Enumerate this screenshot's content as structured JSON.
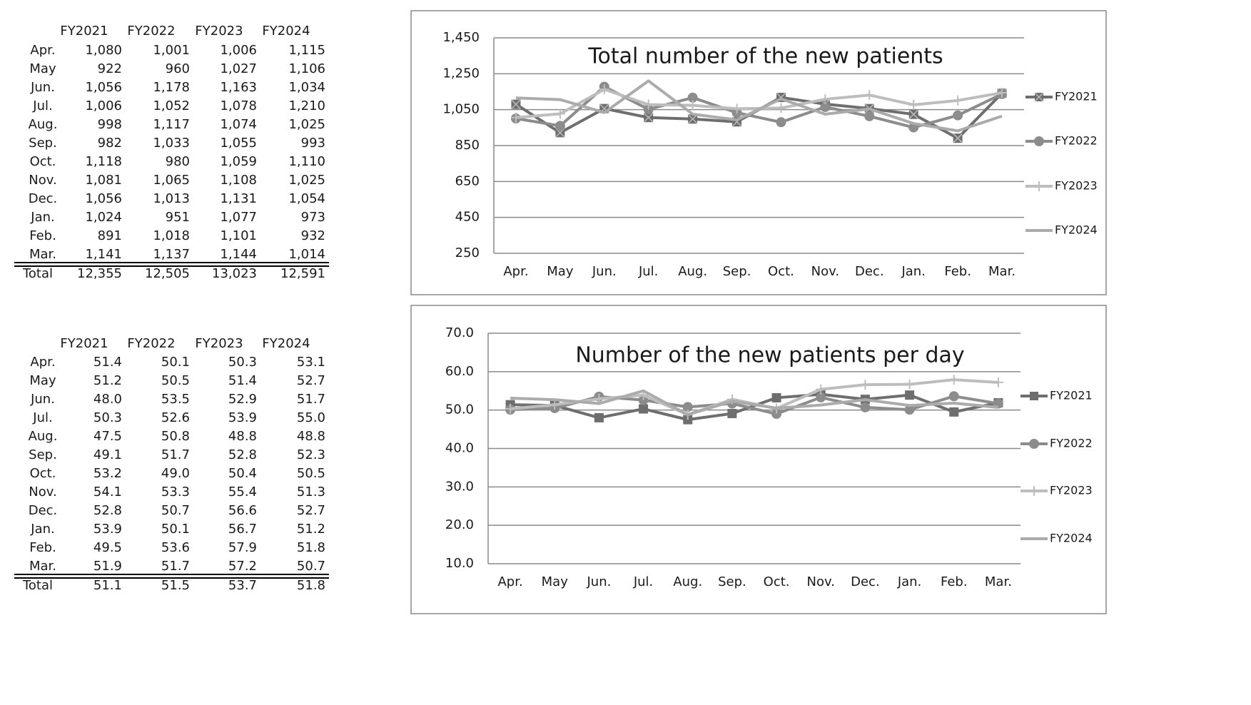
{
  "tables": [
    {
      "columns": [
        "FY2021",
        "FY2022",
        "FY2023",
        "FY2024"
      ],
      "rows": [
        {
          "label": "Apr.",
          "cells": [
            "1,080",
            "1,001",
            "1,006",
            "1,115"
          ]
        },
        {
          "label": "May",
          "cells": [
            "922",
            "960",
            "1,027",
            "1,106"
          ]
        },
        {
          "label": "Jun.",
          "cells": [
            "1,056",
            "1,178",
            "1,163",
            "1,034"
          ]
        },
        {
          "label": "Jul.",
          "cells": [
            "1,006",
            "1,052",
            "1,078",
            "1,210"
          ]
        },
        {
          "label": "Aug.",
          "cells": [
            "998",
            "1,117",
            "1,074",
            "1,025"
          ]
        },
        {
          "label": "Sep.",
          "cells": [
            "982",
            "1,033",
            "1,055",
            "993"
          ]
        },
        {
          "label": "Oct.",
          "cells": [
            "1,118",
            "980",
            "1,059",
            "1,110"
          ]
        },
        {
          "label": "Nov.",
          "cells": [
            "1,081",
            "1,065",
            "1,108",
            "1,025"
          ]
        },
        {
          "label": "Dec.",
          "cells": [
            "1,056",
            "1,013",
            "1,131",
            "1,054"
          ]
        },
        {
          "label": "Jan.",
          "cells": [
            "1,024",
            "951",
            "1,077",
            "973"
          ]
        },
        {
          "label": "Feb.",
          "cells": [
            "891",
            "1,018",
            "1,101",
            "932"
          ]
        },
        {
          "label": "Mar.",
          "cells": [
            "1,141",
            "1,137",
            "1,144",
            "1,014"
          ]
        }
      ],
      "total": {
        "label": "Total",
        "cells": [
          "12,355",
          "12,505",
          "13,023",
          "12,591"
        ]
      }
    },
    {
      "columns": [
        "FY2021",
        "FY2022",
        "FY2023",
        "FY2024"
      ],
      "rows": [
        {
          "label": "Apr.",
          "cells": [
            "51.4",
            "50.1",
            "50.3",
            "53.1"
          ]
        },
        {
          "label": "May",
          "cells": [
            "51.2",
            "50.5",
            "51.4",
            "52.7"
          ]
        },
        {
          "label": "Jun.",
          "cells": [
            "48.0",
            "53.5",
            "52.9",
            "51.7"
          ]
        },
        {
          "label": "Jul.",
          "cells": [
            "50.3",
            "52.6",
            "53.9",
            "55.0"
          ]
        },
        {
          "label": "Aug.",
          "cells": [
            "47.5",
            "50.8",
            "48.8",
            "48.8"
          ]
        },
        {
          "label": "Sep.",
          "cells": [
            "49.1",
            "51.7",
            "52.8",
            "52.3"
          ]
        },
        {
          "label": "Oct.",
          "cells": [
            "53.2",
            "49.0",
            "50.4",
            "50.5"
          ]
        },
        {
          "label": "Nov.",
          "cells": [
            "54.1",
            "53.3",
            "55.4",
            "51.3"
          ]
        },
        {
          "label": "Dec.",
          "cells": [
            "52.8",
            "50.7",
            "56.6",
            "52.7"
          ]
        },
        {
          "label": "Jan.",
          "cells": [
            "53.9",
            "50.1",
            "56.7",
            "51.2"
          ]
        },
        {
          "label": "Feb.",
          "cells": [
            "49.5",
            "53.6",
            "57.9",
            "51.8"
          ]
        },
        {
          "label": "Mar.",
          "cells": [
            "51.9",
            "51.7",
            "57.2",
            "50.7"
          ]
        }
      ],
      "total": {
        "label": "Total",
        "cells": [
          "51.1",
          "51.5",
          "53.7",
          "51.8"
        ]
      }
    }
  ],
  "chart_data": [
    {
      "type": "line",
      "title": "Total number of the new patients",
      "categories": [
        "Apr.",
        "May",
        "Jun.",
        "Jul.",
        "Aug.",
        "Sep.",
        "Oct.",
        "Nov.",
        "Dec.",
        "Jan.",
        "Feb.",
        "Mar."
      ],
      "ylim": [
        250,
        1450
      ],
      "yticks": [
        250,
        450,
        650,
        850,
        {
          "value": 1050,
          "label": "1,050"
        },
        {
          "value": 1250,
          "label": "1,250"
        },
        {
          "value": 1450,
          "label": "1,450"
        }
      ],
      "grid": true,
      "legend": "right",
      "series": [
        {
          "name": "FY2021",
          "color": "#6e6e6e",
          "marker": "square-x",
          "values": [
            1080,
            922,
            1056,
            1006,
            998,
            982,
            1118,
            1081,
            1056,
            1024,
            891,
            1141
          ]
        },
        {
          "name": "FY2022",
          "color": "#8c8c8c",
          "marker": "circle",
          "values": [
            1001,
            960,
            1178,
            1052,
            1117,
            1033,
            980,
            1065,
            1013,
            951,
            1018,
            1137
          ]
        },
        {
          "name": "FY2023",
          "color": "#bdbdbd",
          "marker": "plus",
          "values": [
            1006,
            1027,
            1163,
            1078,
            1074,
            1055,
            1059,
            1108,
            1131,
            1077,
            1101,
            1144
          ]
        },
        {
          "name": "FY2024",
          "color": "#ababab",
          "marker": "none",
          "values": [
            1115,
            1106,
            1034,
            1210,
            1025,
            993,
            1110,
            1025,
            1054,
            973,
            932,
            1014
          ]
        }
      ]
    },
    {
      "type": "line",
      "title": "Number of the new patients per day",
      "categories": [
        "Apr.",
        "May",
        "Jun.",
        "Jul.",
        "Aug.",
        "Sep.",
        "Oct.",
        "Nov.",
        "Dec.",
        "Jan.",
        "Feb.",
        "Mar."
      ],
      "ylim": [
        10,
        70
      ],
      "yticks": [
        {
          "value": 10,
          "label": "10.0"
        },
        {
          "value": 20,
          "label": "20.0"
        },
        {
          "value": 30,
          "label": "30.0"
        },
        {
          "value": 40,
          "label": "40.0"
        },
        {
          "value": 50,
          "label": "50.0"
        },
        {
          "value": 60,
          "label": "60.0"
        },
        {
          "value": 70,
          "label": "70.0"
        }
      ],
      "grid": true,
      "legend": "right",
      "series": [
        {
          "name": "FY2021",
          "color": "#6e6e6e",
          "marker": "square",
          "values": [
            51.4,
            51.2,
            48.0,
            50.3,
            47.5,
            49.1,
            53.2,
            54.1,
            52.8,
            53.9,
            49.5,
            51.9
          ]
        },
        {
          "name": "FY2022",
          "color": "#8c8c8c",
          "marker": "circle",
          "values": [
            50.1,
            50.5,
            53.5,
            52.6,
            50.8,
            51.7,
            49.0,
            53.3,
            50.7,
            50.1,
            53.6,
            51.7
          ]
        },
        {
          "name": "FY2023",
          "color": "#bdbdbd",
          "marker": "plus",
          "values": [
            50.3,
            51.4,
            52.9,
            53.9,
            48.8,
            52.8,
            50.4,
            55.4,
            56.6,
            56.7,
            57.9,
            57.2
          ]
        },
        {
          "name": "FY2024",
          "color": "#ababab",
          "marker": "none",
          "values": [
            53.1,
            52.7,
            51.7,
            55.0,
            48.8,
            52.3,
            50.5,
            51.3,
            52.7,
            51.2,
            51.8,
            50.7
          ]
        }
      ]
    }
  ]
}
